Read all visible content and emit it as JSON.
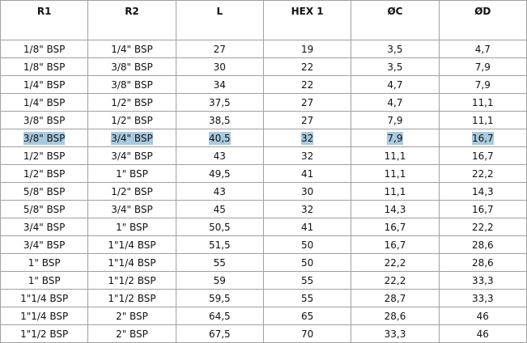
{
  "table": {
    "header": [
      "R1",
      "R2",
      "L",
      "HEX 1",
      "ØC",
      "ØD"
    ],
    "highlighted_row": 5,
    "rows": [
      [
        "1/8\" BSP",
        "1/4\" BSP",
        "27",
        "19",
        "3,5",
        "4,7"
      ],
      [
        "1/8\" BSP",
        "3/8\" BSP",
        "30",
        "22",
        "3,5",
        "7,9"
      ],
      [
        "1/4\" BSP",
        "3/8\" BSP",
        "34",
        "22",
        "4,7",
        "7,9"
      ],
      [
        "1/4\" BSP",
        "1/2\" BSP",
        "37,5",
        "27",
        "4,7",
        "11,1"
      ],
      [
        "3/8\" BSP",
        "1/2\" BSP",
        "38,5",
        "27",
        "7,9",
        "11,1"
      ],
      [
        "3/8\" BSP",
        "3/4\" BSP",
        "40,5",
        "32",
        "7,9",
        "16,7"
      ],
      [
        "1/2\" BSP",
        "3/4\" BSP",
        "43",
        "32",
        "11,1",
        "16,7"
      ],
      [
        "1/2\" BSP",
        "1\" BSP",
        "49,5",
        "41",
        "11,1",
        "22,2"
      ],
      [
        "5/8\" BSP",
        "1/2\" BSP",
        "43",
        "30",
        "11,1",
        "14,3"
      ],
      [
        "5/8\" BSP",
        "3/4\" BSP",
        "45",
        "32",
        "14,3",
        "16,7"
      ],
      [
        "3/4\" BSP",
        "1\" BSP",
        "50,5",
        "41",
        "16,7",
        "22,2"
      ],
      [
        "3/4\" BSP",
        "1\"1/4 BSP",
        "51,5",
        "50",
        "16,7",
        "28,6"
      ],
      [
        "1\" BSP",
        "1\"1/4 BSP",
        "55",
        "50",
        "22,2",
        "28,6"
      ],
      [
        "1\" BSP",
        "1\"1/2 BSP",
        "59",
        "55",
        "22,2",
        "33,3"
      ],
      [
        "1\"1/4 BSP",
        "1\"1/2 BSP",
        "59,5",
        "55",
        "28,7",
        "33,3"
      ],
      [
        "1\"1/4 BSP",
        "2\" BSP",
        "64,5",
        "65",
        "28,6",
        "46"
      ],
      [
        "1\"1/2 BSP",
        "2\" BSP",
        "67,5",
        "70",
        "33,3",
        "46"
      ]
    ]
  }
}
